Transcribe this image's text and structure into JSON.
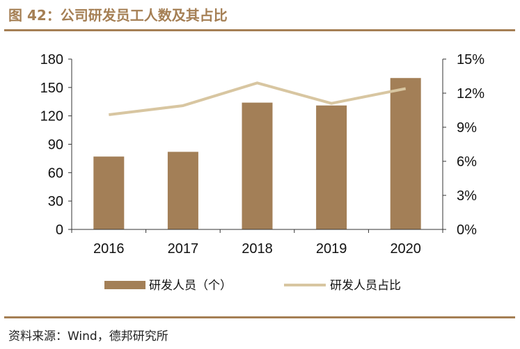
{
  "figure": {
    "title": "图 42：公司研发员工人数及其占比",
    "source": "资料来源：Wind，德邦研究所"
  },
  "colors": {
    "brand": "#a57f54",
    "bar": "#a37f57",
    "line": "#d8c6a1"
  },
  "chart_data": {
    "type": "bar",
    "categories": [
      "2016",
      "2017",
      "2018",
      "2019",
      "2020"
    ],
    "series": [
      {
        "name": "研发人员（个）",
        "type": "bar",
        "axis": "left",
        "values": [
          77,
          82,
          134,
          131,
          160
        ]
      },
      {
        "name": "研发人员占比",
        "type": "line",
        "axis": "right",
        "values": [
          0.101,
          0.109,
          0.129,
          0.111,
          0.124
        ]
      }
    ],
    "y_left": {
      "ylim": [
        0,
        180
      ],
      "ticks": [
        "0",
        "30",
        "60",
        "90",
        "120",
        "150",
        "180"
      ]
    },
    "y_right": {
      "ylim": [
        0,
        0.15
      ],
      "ticks": [
        "0%",
        "3%",
        "6%",
        "9%",
        "12%",
        "15%"
      ]
    },
    "grid": false,
    "legend_position": "bottom"
  }
}
